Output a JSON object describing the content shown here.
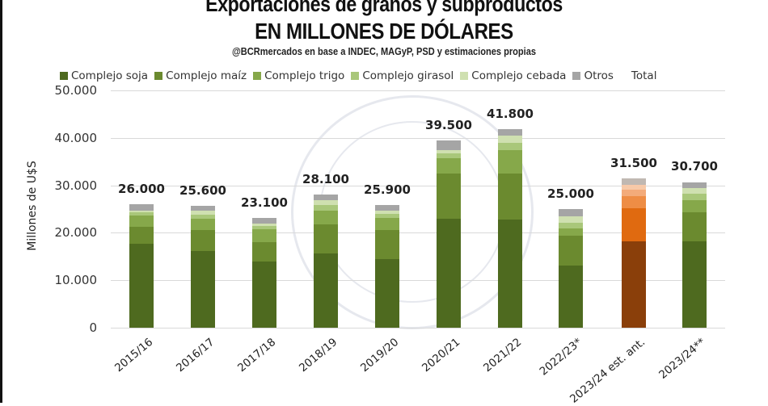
{
  "header": {
    "title_line1": "Exportaciones de granos y subproductos",
    "title_line2": "EN MILLONES DE DÓLARES",
    "subtitle": "@BCRmercados en base a INDEC, MAGyP, PSD y estimaciones propias"
  },
  "legend": {
    "items": [
      {
        "label": "Complejo soja",
        "color": "#4e6a1f"
      },
      {
        "label": "Complejo maíz",
        "color": "#6b8a2f"
      },
      {
        "label": "Complejo trigo",
        "color": "#86a84a"
      },
      {
        "label": "Complejo girasol",
        "color": "#a9c77a"
      },
      {
        "label": "Complejo cebada",
        "color": "#cfe0b0"
      },
      {
        "label": "Otros",
        "color": "#a5a5a5"
      }
    ],
    "total_label": "Total"
  },
  "axis": {
    "y_title": "Millones de U$S",
    "y_ticks": [
      "0",
      "10.000",
      "20.000",
      "30.000",
      "40.000",
      "50.000"
    ]
  },
  "highlight_colors": [
    "#8a3f0a",
    "#e06a10",
    "#ee8d45",
    "#f3ab7a",
    "#f7c9a8",
    "#c0b8b2"
  ],
  "chart_data": {
    "type": "bar",
    "stacked": true,
    "title": "Exportaciones de granos y subproductos EN MILLONES DE DÓLARES",
    "subtitle": "@BCRmercados en base a INDEC, MAGyP, PSD y estimaciones propias",
    "xlabel": "",
    "ylabel": "Millones de U$S",
    "ylim": [
      0,
      50000
    ],
    "grid": true,
    "legend_position": "top",
    "categories": [
      "2015/16",
      "2016/17",
      "2017/18",
      "2018/19",
      "2019/20",
      "2020/21",
      "2021/22",
      "2022/23*",
      "2023/24 est. ant.",
      "2023/24**"
    ],
    "totals": [
      26000,
      25600,
      23100,
      28100,
      25900,
      39500,
      41800,
      25000,
      31500,
      30700
    ],
    "total_labels": [
      "26.000",
      "25.600",
      "23.100",
      "28.100",
      "25.900",
      "39.500",
      "41.800",
      "25.000",
      "31.500",
      "30.700"
    ],
    "series": [
      {
        "name": "Complejo soja",
        "values": [
          17700,
          16200,
          14000,
          15700,
          14500,
          23000,
          22800,
          13100,
          18200,
          18200
        ]
      },
      {
        "name": "Complejo maíz",
        "values": [
          3600,
          4300,
          4100,
          6100,
          6000,
          9500,
          9700,
          6300,
          7000,
          6100
        ]
      },
      {
        "name": "Complejo trigo",
        "values": [
          2400,
          2400,
          2600,
          2900,
          2600,
          3200,
          4900,
          1500,
          2600,
          2600
        ]
      },
      {
        "name": "Complejo girasol",
        "values": [
          600,
          900,
          700,
          1200,
          800,
          1000,
          1500,
          1200,
          1300,
          1300
        ]
      },
      {
        "name": "Complejo cebada",
        "values": [
          400,
          800,
          600,
          1000,
          800,
          800,
          1500,
          1400,
          1000,
          1200
        ]
      },
      {
        "name": "Otros",
        "values": [
          1300,
          1000,
          1100,
          1200,
          1200,
          2000,
          1400,
          1500,
          1400,
          1200
        ]
      }
    ],
    "highlighted_category": "2023/24 est. ant."
  }
}
